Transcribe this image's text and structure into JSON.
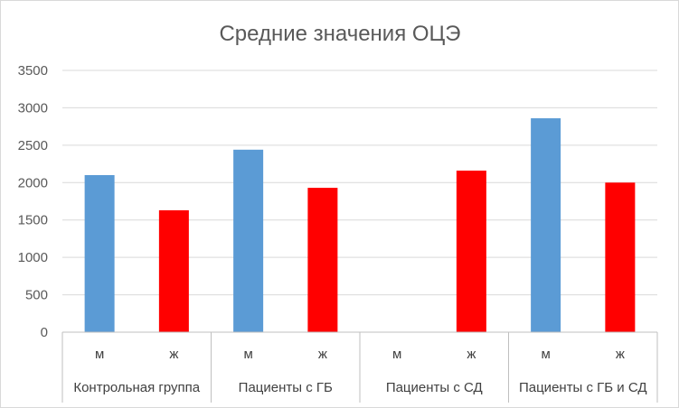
{
  "chart_data": {
    "type": "bar",
    "title": "Средние значения ОЦЭ",
    "xlabel": "",
    "ylabel": "",
    "ylim": [
      0,
      3500
    ],
    "yticks": [
      0,
      500,
      1000,
      1500,
      2000,
      2500,
      3000,
      3500
    ],
    "grid": true,
    "legend": "none",
    "groups": [
      {
        "label": "Контрольная группа",
        "bars": [
          {
            "label": "м",
            "value": 2100,
            "color": "#5b9bd5"
          },
          {
            "label": "ж",
            "value": 1630,
            "color": "#ff0000"
          }
        ]
      },
      {
        "label": "Пациенты с ГБ",
        "bars": [
          {
            "label": "м",
            "value": 2440,
            "color": "#5b9bd5"
          },
          {
            "label": "ж",
            "value": 1930,
            "color": "#ff0000"
          }
        ]
      },
      {
        "label": "Пациенты с СД",
        "bars": [
          {
            "label": "м",
            "value": 0,
            "color": "#5b9bd5"
          },
          {
            "label": "ж",
            "value": 2160,
            "color": "#ff0000"
          }
        ]
      },
      {
        "label": "Пациенты с ГБ и СД",
        "bars": [
          {
            "label": "м",
            "value": 2860,
            "color": "#5b9bd5"
          },
          {
            "label": "ж",
            "value": 2000,
            "color": "#ff0000"
          }
        ]
      }
    ]
  }
}
